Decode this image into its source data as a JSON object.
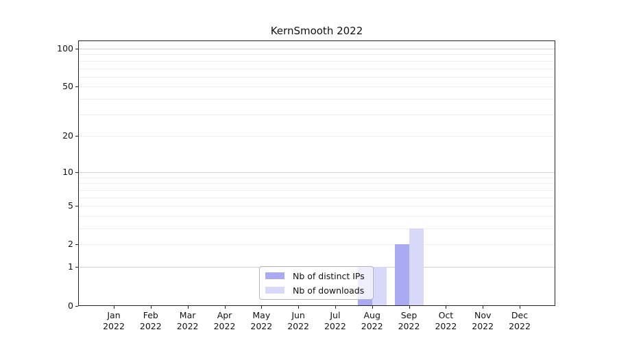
{
  "title": "KernSmooth 2022",
  "chart_data": {
    "type": "bar",
    "title": "KernSmooth 2022",
    "categories": [
      "Jan",
      "Feb",
      "Mar",
      "Apr",
      "May",
      "Jun",
      "Jul",
      "Aug",
      "Sep",
      "Oct",
      "Nov",
      "Dec"
    ],
    "year_label": "2022",
    "series": [
      {
        "name": "Nb of distinct IPs",
        "color": "#aaaaf3",
        "values": [
          0,
          0,
          0,
          0,
          0,
          0,
          0,
          1,
          2,
          0,
          0,
          0
        ]
      },
      {
        "name": "Nb of downloads",
        "color": "#d8d8f8",
        "values": [
          0,
          0,
          0,
          0,
          0,
          0,
          0,
          1,
          3,
          0,
          0,
          0
        ]
      }
    ],
    "xlabel": "",
    "ylabel": "",
    "yaxis": {
      "scale": "log1p",
      "tick_labels": [
        "0",
        "1",
        "2",
        "5",
        "10",
        "20",
        "50",
        "100"
      ],
      "tick_values": [
        0,
        1,
        2,
        5,
        10,
        20,
        50,
        100
      ],
      "grid_major": [
        1,
        10,
        100
      ],
      "grid_minor": [
        2,
        3,
        4,
        5,
        6,
        7,
        8,
        9,
        20,
        30,
        40,
        50,
        60,
        70,
        80,
        90
      ],
      "ylim": [
        0,
        116
      ]
    },
    "grid": "horizontal",
    "legend_position": "bottom-center"
  }
}
